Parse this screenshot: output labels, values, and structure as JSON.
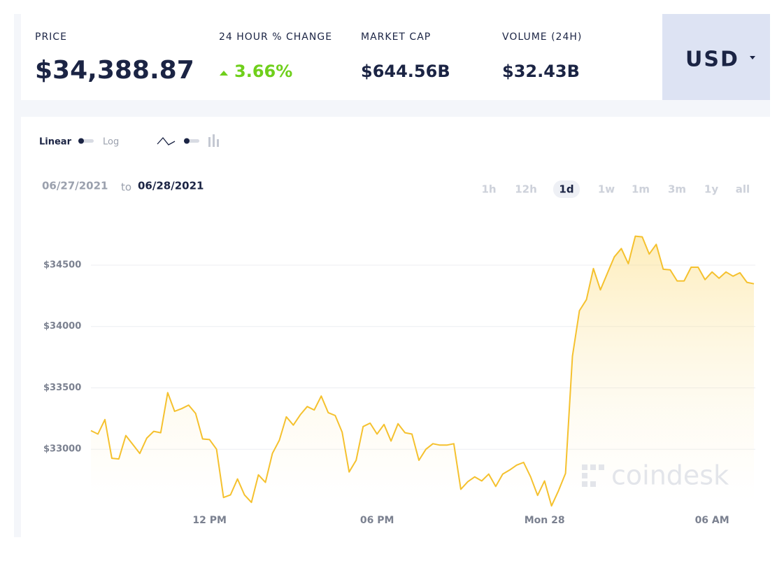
{
  "header": {
    "stats": [
      {
        "label": "PRICE",
        "value": "$34,388.87"
      },
      {
        "label": "24 HOUR % CHANGE",
        "value": "3.66%"
      },
      {
        "label": "MARKET CAP",
        "value": "$644.56B"
      },
      {
        "label": "VOLUME (24H)",
        "value": "$32.43B"
      }
    ],
    "currency": "USD"
  },
  "controls": {
    "scale_options": [
      "Linear",
      "Log"
    ]
  },
  "date_range": {
    "from": "06/27/2021",
    "joiner": "to",
    "to": "06/28/2021"
  },
  "timeframes": {
    "options": [
      "1h",
      "12h",
      "1d",
      "1w",
      "1m",
      "3m",
      "1y",
      "all"
    ],
    "selected": "1d"
  },
  "watermark": "coindesk",
  "chart_data": {
    "type": "line",
    "color": "#f5c12e",
    "x": [
      7.75,
      8,
      8.25,
      8.5,
      8.75,
      9,
      9.25,
      9.5,
      9.75,
      10,
      10.25,
      10.5,
      10.75,
      11,
      11.25,
      11.5,
      11.75,
      12,
      12.25,
      12.5,
      12.75,
      13,
      13.25,
      13.5,
      13.75,
      14,
      14.25,
      14.5,
      14.75,
      15,
      15.25,
      15.5,
      15.75,
      16,
      16.25,
      16.5,
      16.75,
      17,
      17.25,
      17.5,
      17.75,
      18,
      18.25,
      18.5,
      18.75,
      19,
      19.25,
      19.5,
      19.75,
      20,
      20.25,
      20.5,
      20.75,
      21,
      21.25,
      21.5,
      21.75,
      22,
      22.25,
      22.5,
      22.75,
      23,
      23.25,
      23.5,
      23.75,
      24,
      24.25,
      24.5,
      24.75,
      25,
      25.25,
      25.5,
      25.75,
      26,
      26.25,
      26.5,
      26.75,
      27,
      27.25,
      27.5,
      27.75,
      28,
      28.25,
      28.5,
      28.75,
      29,
      29.25,
      29.5,
      29.75,
      30,
      30.25,
      30.5,
      30.75,
      31,
      31.25,
      31.5
    ],
    "values": [
      33152,
      33124,
      33242,
      32927,
      32921,
      33112,
      33039,
      32966,
      33090,
      33146,
      33135,
      33461,
      33309,
      33331,
      33360,
      33292,
      33084,
      33079,
      33000,
      32607,
      32629,
      32758,
      32629,
      32567,
      32792,
      32730,
      32966,
      33073,
      33264,
      33197,
      33281,
      33348,
      33320,
      33433,
      33298,
      33275,
      33140,
      32815,
      32910,
      33185,
      33213,
      33124,
      33202,
      33067,
      33208,
      33135,
      33124,
      32910,
      33000,
      33045,
      33034,
      33034,
      33045,
      32674,
      32736,
      32775,
      32742,
      32798,
      32697,
      32798,
      32831,
      32871,
      32893,
      32775,
      32624,
      32742,
      32539,
      32663,
      32803,
      33758,
      34129,
      34219,
      34472,
      34298,
      34433,
      34567,
      34635,
      34511,
      34736,
      34730,
      34590,
      34669,
      34466,
      34461,
      34371,
      34371,
      34483,
      34483,
      34382,
      34444,
      34393,
      34444,
      34410,
      34438,
      34360,
      34348
    ],
    "xlim": [
      7.75,
      31.5
    ],
    "xticks": [
      {
        "value": 12,
        "label": "12 PM"
      },
      {
        "value": 18,
        "label": "06 PM"
      },
      {
        "value": 24,
        "label": "Mon 28"
      },
      {
        "value": 30,
        "label": "06 AM"
      }
    ],
    "ylim": [
      32500,
      34950
    ],
    "yticks": [
      {
        "value": 33000,
        "label": "$33000"
      },
      {
        "value": 33500,
        "label": "$33500"
      },
      {
        "value": 34000,
        "label": "$34000"
      },
      {
        "value": 34500,
        "label": "$34500"
      }
    ],
    "grid": true
  }
}
